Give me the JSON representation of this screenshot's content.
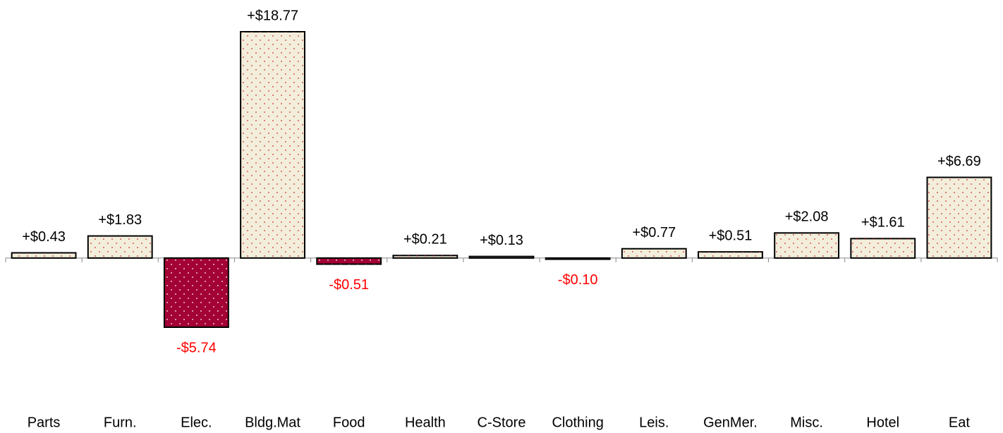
{
  "chart_data": {
    "type": "bar",
    "categories": [
      "Parts",
      "Furn.",
      "Elec.",
      "Bldg.Mat",
      "Food",
      "Health",
      "C-Store",
      "Clothing",
      "Leis.",
      "GenMer.",
      "Misc.",
      "Hotel",
      "Eat"
    ],
    "values": [
      0.43,
      1.83,
      -5.74,
      18.77,
      -0.51,
      0.21,
      0.13,
      -0.1,
      0.77,
      0.51,
      2.08,
      1.61,
      6.69
    ],
    "value_labels": [
      "+$0.43",
      "+$1.83",
      "-$5.74",
      "+$18.77",
      "-$0.51",
      "+$0.21",
      "+$0.13",
      "-$0.10",
      "+$0.77",
      "+$0.51",
      "+$2.08",
      "+$1.61",
      "+$6.69"
    ],
    "color": "#f3eedb",
    "negative_color": "#a30035",
    "negative_label_color": "#ff0000"
  }
}
